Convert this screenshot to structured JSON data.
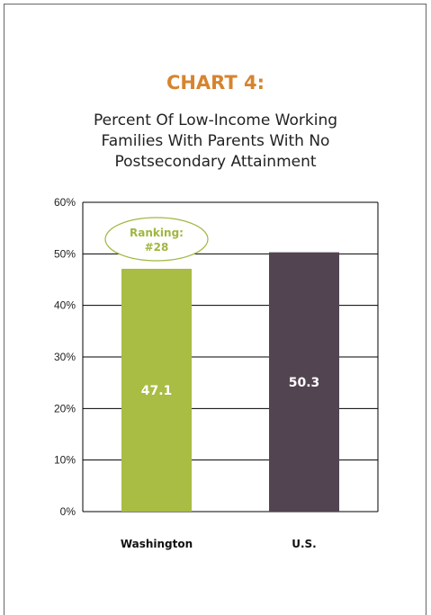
{
  "chart_data": {
    "type": "bar",
    "title": "CHART 4:",
    "subtitle": "Percent Of Low-Income Working Families With Parents With No Postsecondary Attainment",
    "categories": [
      "Washington",
      "U.S."
    ],
    "values": [
      47.1,
      50.3
    ],
    "value_labels": [
      "47.1",
      "50.3"
    ],
    "bar_colors": [
      "#a9bc44",
      "#524450"
    ],
    "ylim": [
      0,
      60
    ],
    "yticks": [
      0,
      10,
      20,
      30,
      40,
      50,
      60
    ],
    "ytick_labels": [
      "0%",
      "10%",
      "20%",
      "30%",
      "40%",
      "50%",
      "60%"
    ],
    "grid": true,
    "annotation": {
      "line1": "Ranking:",
      "line2": "#28",
      "category": "Washington",
      "color": "#9fb73f"
    }
  }
}
